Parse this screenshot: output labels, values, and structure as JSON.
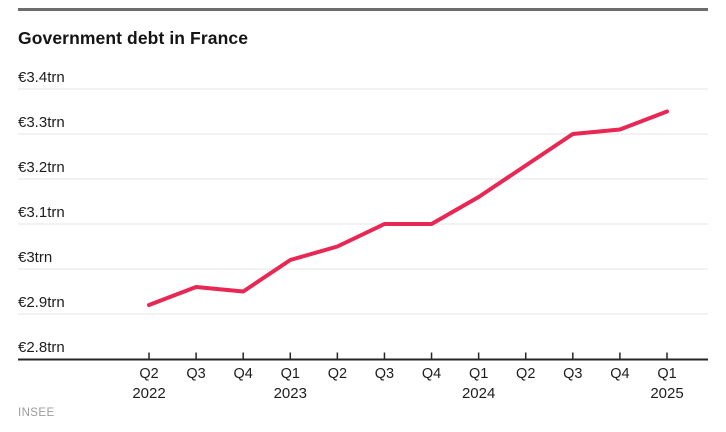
{
  "header": {
    "title": "Government debt in France"
  },
  "footer": {
    "source": "INSEE"
  },
  "colors": {
    "line": "#e92754",
    "grid": "#e4e4e4",
    "axis": "#262626",
    "top_rule": "#6d6d6d",
    "tick_text": "#1d1d1d",
    "muted_text": "#9c9c9c"
  },
  "chart_data": {
    "type": "line",
    "title": "Government debt in France",
    "unit": "EUR trn",
    "categories": [
      "Q2 2022",
      "Q3 2022",
      "Q4 2022",
      "Q1 2023",
      "Q2 2023",
      "Q3 2023",
      "Q4 2023",
      "Q1 2024",
      "Q2 2024",
      "Q3 2024",
      "Q4 2024",
      "Q1 2025"
    ],
    "quarter_labels": [
      "Q2",
      "Q3",
      "Q4",
      "Q1",
      "Q2",
      "Q3",
      "Q4",
      "Q1",
      "Q2",
      "Q3",
      "Q4",
      "Q1"
    ],
    "year_ticks": [
      {
        "index": 0,
        "label": "2022"
      },
      {
        "index": 3,
        "label": "2023"
      },
      {
        "index": 7,
        "label": "2024"
      },
      {
        "index": 11,
        "label": "2025"
      }
    ],
    "values": [
      2.92,
      2.96,
      2.95,
      3.02,
      3.05,
      3.1,
      3.1,
      3.16,
      3.23,
      3.3,
      3.31,
      3.35
    ],
    "ylim": [
      2.8,
      3.4
    ],
    "yticks": [
      {
        "value": 3.4,
        "label": "€3.4trn"
      },
      {
        "value": 3.3,
        "label": "€3.3trn"
      },
      {
        "value": 3.2,
        "label": "€3.2trn"
      },
      {
        "value": 3.1,
        "label": "€3.1trn"
      },
      {
        "value": 3.0,
        "label": "€3trn"
      },
      {
        "value": 2.9,
        "label": "€2.9trn"
      },
      {
        "value": 2.8,
        "label": "€2.8trn"
      }
    ],
    "grid": true,
    "legend": "none",
    "source": "INSEE"
  }
}
